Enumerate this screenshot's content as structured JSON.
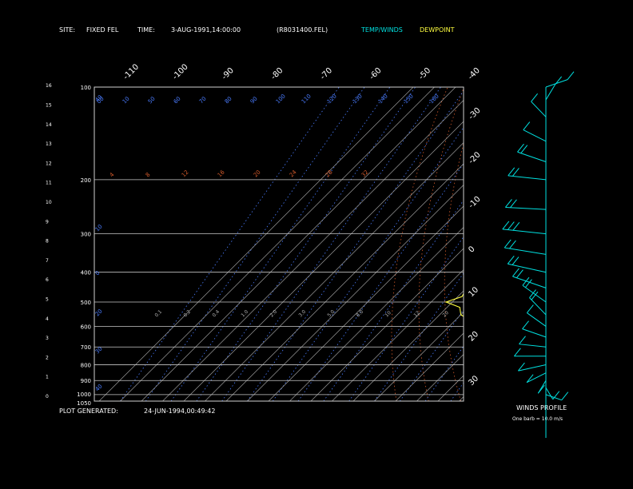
{
  "header": {
    "site_label": "SITE:",
    "site_value": "FIXED FEL",
    "time_label": "TIME:",
    "time_value": "3-AUG-1991,14:00:00",
    "file": "(R8031400.FEL)",
    "temp_winds": "TEMP/WINDS",
    "dewpoint": "DEWPOINT"
  },
  "footer": {
    "generated_label": "PLOT GENERATED:",
    "generated_value": "24-JUN-1994,00:49:42"
  },
  "wind_profile": {
    "title": "WINDS PROFILE",
    "note": "One barb = 10.0 m/s"
  },
  "colors": {
    "temp": "#00e0e0",
    "dewpoint": "#ffff40",
    "mixing_ratio": "#4a7cff",
    "dry_adiabat": "#d25a2a",
    "isotherm": "#9a9a9a",
    "isobar": "#c8c8c8",
    "background": "#000000"
  },
  "chart_data": {
    "type": "line",
    "subtype": "skew-T log-P thermodynamic diagram",
    "pressure_range_hPa": [
      1050,
      100
    ],
    "pressure_ticks": [
      100,
      200,
      300,
      400,
      500,
      600,
      700,
      800,
      900,
      1000,
      1050
    ],
    "height_ticks_km": [
      0,
      1,
      2,
      3,
      4,
      5,
      6,
      7,
      8,
      9,
      10,
      11,
      12,
      13,
      14,
      15,
      16
    ],
    "isotherm_top_labels": [
      "-110",
      "-100",
      "-90",
      "-80",
      "-70",
      "-60",
      "-50",
      "-40"
    ],
    "isotherm_right_labels": [
      "-30",
      "-20",
      "-10",
      "0",
      "10",
      "20",
      "30"
    ],
    "mixing_ratio_labels_top": [
      "00",
      "10",
      "50",
      "60",
      "70",
      "80",
      "90",
      "100",
      "110",
      "120",
      "130",
      "140",
      "150",
      "160"
    ],
    "mixing_ratio_labels_left": [
      "40",
      "10",
      "0",
      "20",
      "30",
      "40",
      "35"
    ],
    "dry_adiabat_labels": [
      "4",
      "8",
      "12",
      "16",
      "20",
      "24",
      "28",
      "32"
    ],
    "low_level_labels": [
      "0.1",
      "0.2",
      "0.4",
      "1.0",
      "2.0",
      "3.0",
      "5.0",
      "8.0",
      "10",
      "12",
      "20"
    ],
    "series": [
      {
        "name": "TEMP/WINDS",
        "points": [
          [
            1000,
            26
          ],
          [
            950,
            22
          ],
          [
            900,
            18
          ],
          [
            850,
            15
          ],
          [
            800,
            13
          ],
          [
            750,
            10
          ],
          [
            700,
            6
          ],
          [
            650,
            2
          ],
          [
            600,
            -3
          ],
          [
            550,
            -7
          ],
          [
            500,
            -12
          ],
          [
            450,
            -17
          ],
          [
            400,
            -23
          ],
          [
            350,
            -30
          ],
          [
            300,
            -39
          ],
          [
            250,
            -47
          ],
          [
            200,
            -54
          ],
          [
            175,
            -58
          ],
          [
            150,
            -62
          ],
          [
            125,
            -64
          ],
          [
            110,
            -64
          ],
          [
            100,
            -66
          ]
        ]
      },
      {
        "name": "DEWPOINT",
        "points": [
          [
            1000,
            18
          ],
          [
            950,
            14
          ],
          [
            900,
            9
          ],
          [
            850,
            6
          ],
          [
            800,
            1
          ],
          [
            750,
            0
          ],
          [
            700,
            -7
          ],
          [
            650,
            -14
          ],
          [
            600,
            -20
          ],
          [
            580,
            -21
          ],
          [
            550,
            -30
          ],
          [
            520,
            -34
          ],
          [
            500,
            -43
          ],
          [
            480,
            -38
          ],
          [
            450,
            -40
          ],
          [
            430,
            -43
          ],
          [
            400,
            -46
          ],
          [
            380,
            -50
          ],
          [
            360,
            -52
          ],
          [
            340,
            -44
          ],
          [
            330,
            -55
          ],
          [
            320,
            -59
          ],
          [
            300,
            -60
          ],
          [
            280,
            -57
          ],
          [
            260,
            -58
          ],
          [
            240,
            -56
          ],
          [
            220,
            -56
          ],
          [
            200,
            -57
          ]
        ]
      }
    ],
    "winds": {
      "unit": "m/s",
      "barb_value": 10.0,
      "levels": [
        {
          "p": 1000,
          "dir": 120,
          "spd": 2
        },
        {
          "p": 950,
          "dir": 160,
          "spd": 4
        },
        {
          "p": 900,
          "dir": 200,
          "spd": 6
        },
        {
          "p": 850,
          "dir": 230,
          "spd": 8
        },
        {
          "p": 800,
          "dir": 250,
          "spd": 12
        },
        {
          "p": 750,
          "dir": 270,
          "spd": 14
        },
        {
          "p": 700,
          "dir": 280,
          "spd": 10
        },
        {
          "p": 650,
          "dir": 300,
          "spd": 10
        },
        {
          "p": 600,
          "dir": 320,
          "spd": 12
        },
        {
          "p": 550,
          "dir": 330,
          "spd": 15
        },
        {
          "p": 500,
          "dir": 320,
          "spd": 18
        },
        {
          "p": 450,
          "dir": 300,
          "spd": 20
        },
        {
          "p": 400,
          "dir": 290,
          "spd": 22
        },
        {
          "p": 350,
          "dir": 285,
          "spd": 24
        },
        {
          "p": 300,
          "dir": 280,
          "spd": 25
        },
        {
          "p": 250,
          "dir": 275,
          "spd": 22
        },
        {
          "p": 200,
          "dir": 280,
          "spd": 20
        },
        {
          "p": 175,
          "dir": 300,
          "spd": 15
        },
        {
          "p": 150,
          "dir": 310,
          "spd": 12
        },
        {
          "p": 125,
          "dir": 330,
          "spd": 12
        },
        {
          "p": 110,
          "dir": 20,
          "spd": 10
        },
        {
          "p": 100,
          "dir": 60,
          "spd": 8
        }
      ]
    }
  }
}
